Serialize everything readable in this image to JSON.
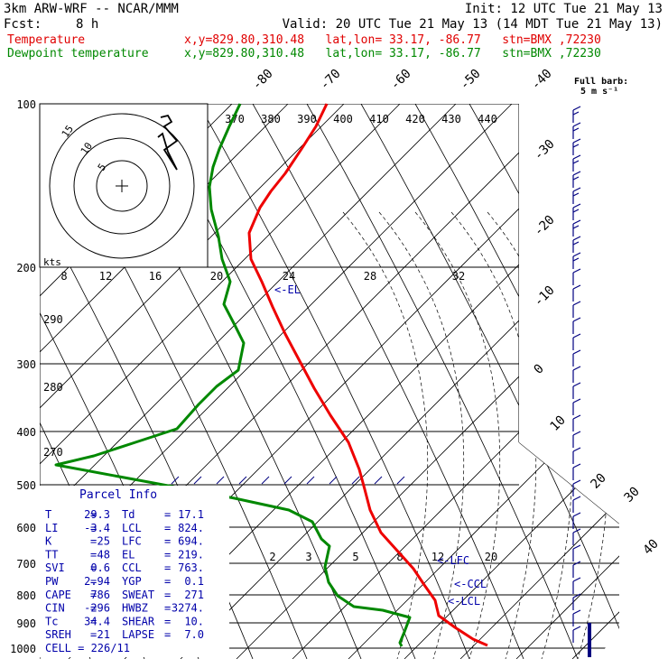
{
  "header": {
    "model": "3km ARW-WRF -- NCAR/MMM",
    "init": "Init: 12 UTC Tue 21 May 13",
    "fcst_label": "Fcst:",
    "fcst_value": "8 h",
    "valid": "Valid: 20 UTC Tue 21 May 13 (14 MDT Tue 21 May 13)",
    "temp_label": "Temperature",
    "dew_label": "Dewpoint temperature",
    "loc_info": "x,y=829.80,310.48   lat,lon= 33.17, -86.77   stn=BMX ,72230"
  },
  "colors": {
    "temperature": "#ee0000",
    "dewpoint": "#008800",
    "grid": "#000000",
    "parcel_text": "#0000aa"
  },
  "barb_legend": {
    "title": "Full barb:",
    "value": "5 m s⁻¹"
  },
  "hodograph": {
    "units": "kts",
    "ring_labels": [
      "5",
      "10",
      "15"
    ]
  },
  "chart_data": {
    "type": "line",
    "pressure_levels": [
      "100",
      "200",
      "300",
      "400",
      "500",
      "600",
      "700",
      "800",
      "900",
      "1000"
    ],
    "isotherm_labels": [
      "-80",
      "-70",
      "-60",
      "-50",
      "-40",
      "-30",
      "-20",
      "-10",
      "0",
      "10",
      "20",
      "30",
      "40"
    ],
    "theta_labels": [
      "370",
      "380",
      "390",
      "400",
      "410",
      "420",
      "430",
      "440"
    ],
    "mixing_ratio_top_labels": [
      "8",
      "12",
      "16",
      "20",
      "24",
      "28",
      "32"
    ],
    "mixing_ratio_low_labels": [
      "2",
      "3",
      "5",
      "8",
      "12",
      "20"
    ],
    "theta_e_labels": [
      "290",
      "280",
      "270"
    ],
    "markers": [
      "<-EL",
      "<-CCL",
      "<-LCL",
      "<-LFC"
    ],
    "series": [
      {
        "name": "Temperature",
        "points": [
          [
            362,
            115
          ],
          [
            350,
            140
          ],
          [
            334,
            165
          ],
          [
            316,
            192
          ],
          [
            300,
            212
          ],
          [
            288,
            230
          ],
          [
            276,
            258
          ],
          [
            278,
            287
          ],
          [
            290,
            312
          ],
          [
            302,
            340
          ],
          [
            316,
            370
          ],
          [
            332,
            400
          ],
          [
            348,
            430
          ],
          [
            366,
            460
          ],
          [
            386,
            490
          ],
          [
            398,
            520
          ],
          [
            404,
            542
          ],
          [
            410,
            565
          ],
          [
            422,
            590
          ],
          [
            440,
            610
          ],
          [
            458,
            630
          ],
          [
            470,
            648
          ],
          [
            482,
            665
          ],
          [
            486,
            682
          ],
          [
            504,
            695
          ],
          [
            524,
            708
          ],
          [
            540,
            715
          ]
        ]
      },
      {
        "name": "Dewpoint temperature",
        "points": [
          [
            266,
            115
          ],
          [
            254,
            140
          ],
          [
            243,
            165
          ],
          [
            236,
            185
          ],
          [
            232,
            207
          ],
          [
            234,
            232
          ],
          [
            242,
            262
          ],
          [
            246,
            287
          ],
          [
            255,
            312
          ],
          [
            248,
            337
          ],
          [
            260,
            360
          ],
          [
            270,
            380
          ],
          [
            264,
            410
          ],
          [
            240,
            428
          ],
          [
            220,
            448
          ],
          [
            196,
            475
          ],
          [
            150,
            490
          ],
          [
            104,
            505
          ],
          [
            62,
            515
          ],
          [
            170,
            535
          ],
          [
            260,
            552
          ],
          [
            320,
            565
          ],
          [
            346,
            578
          ],
          [
            356,
            597
          ],
          [
            365,
            605
          ],
          [
            360,
            628
          ],
          [
            364,
            645
          ],
          [
            374,
            660
          ],
          [
            392,
            672
          ],
          [
            424,
            676
          ],
          [
            454,
            684
          ],
          [
            448,
            700
          ],
          [
            443,
            712
          ],
          [
            445,
            716
          ]
        ]
      }
    ]
  },
  "parcel_info": {
    "title": "Parcel Info",
    "rows": [
      {
        "k1": "T",
        "v1": "29.3",
        "k2": "Td",
        "v2": "17.1"
      },
      {
        "k1": "LI",
        "v1": "-3.4",
        "k2": "LCL",
        "v2": "824."
      },
      {
        "k1": "K",
        "v1": "25",
        "k2": "LFC",
        "v2": "694."
      },
      {
        "k1": "TT",
        "v1": "48",
        "k2": "EL",
        "v2": "219."
      },
      {
        "k1": "SVI",
        "v1": "0.6",
        "k2": "CCL",
        "v2": "763."
      },
      {
        "k1": "PW",
        "v1": "2.94",
        "k2": "YGP",
        "v2": "0.1"
      },
      {
        "k1": "CAPE",
        "v1": "786",
        "k2": "SWEAT",
        "v2": "271"
      },
      {
        "k1": "CIN",
        "v1": "-296",
        "k2": "HWBZ",
        "v2": "3274."
      },
      {
        "k1": "Tc",
        "v1": "34.4",
        "k2": "SHEAR",
        "v2": "10."
      },
      {
        "k1": "SREH",
        "v1": "21",
        "k2": "LAPSE",
        "v2": "7.0"
      }
    ],
    "cell": "CELL = 226/11"
  }
}
